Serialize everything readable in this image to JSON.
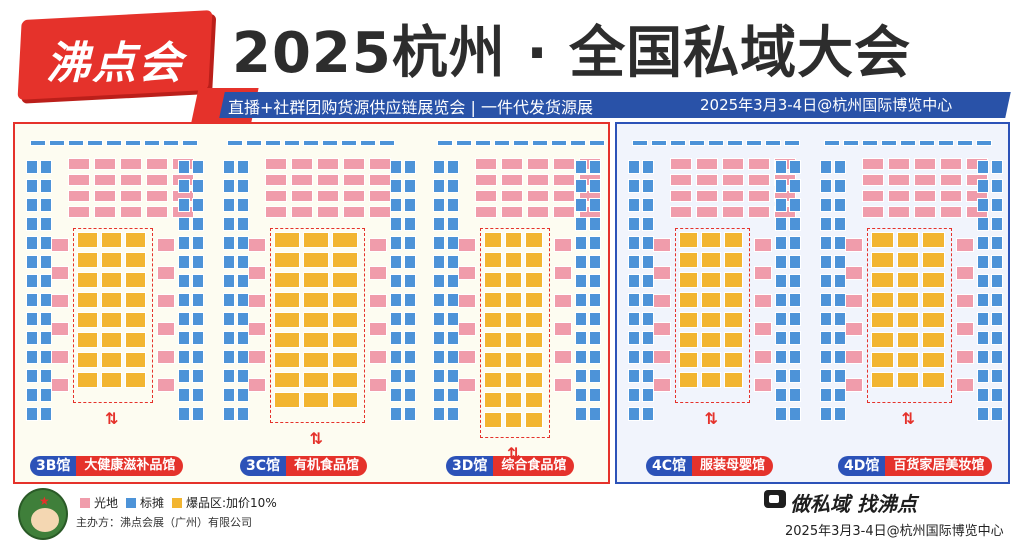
{
  "header": {
    "logo": "沸点会",
    "title": "2025杭州 · 全国私域大会",
    "subtitle": "直播+社群团购货源供应链展览会 | 一件代发货源展",
    "date_venue": "2025年3月3-4日@杭州国际博览中心"
  },
  "halls": [
    {
      "code": "3B馆",
      "name": "大健康滋补品馆"
    },
    {
      "code": "3C馆",
      "name": "有机食品馆"
    },
    {
      "code": "3D馆",
      "name": "综合食品馆"
    },
    {
      "code": "4C馆",
      "name": "服装母婴馆"
    },
    {
      "code": "4D馆",
      "name": "百货家居美妆馆"
    }
  ],
  "legend": {
    "items": [
      {
        "label": "光地",
        "color": "#f09cab"
      },
      {
        "label": "标摊",
        "color": "#4d93d8"
      },
      {
        "label": "爆品区:加价10%",
        "color": "#f2b531"
      }
    ],
    "host": "主办方：沸点会展（广州）有限公司"
  },
  "footer": {
    "slogan": "做私域 找沸点",
    "date_venue": "2025年3月3-4日@杭州国际博览中心"
  },
  "colors": {
    "accent_red": "#e5322b",
    "accent_blue": "#2c52b8",
    "booth_pink": "#f09cab",
    "booth_blue": "#4d93d8",
    "booth_gold": "#f2b531"
  }
}
